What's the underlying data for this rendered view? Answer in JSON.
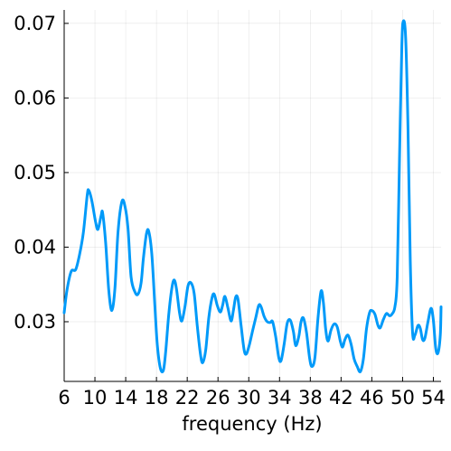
{
  "chart_data": {
    "type": "line",
    "title": "",
    "xlabel": "frequency (Hz)",
    "ylabel": "",
    "xlim": [
      6,
      55
    ],
    "ylim": [
      0.022,
      0.0718
    ],
    "grid": true,
    "legend": "none",
    "x_ticks": [
      6,
      10,
      14,
      18,
      22,
      26,
      30,
      34,
      38,
      42,
      46,
      50,
      54
    ],
    "x_tick_labels": [
      "6",
      "10",
      "14",
      "18",
      "22",
      "26",
      "30",
      "34",
      "38",
      "42",
      "46",
      "50",
      "54"
    ],
    "y_ticks": [
      0.03,
      0.04,
      0.05,
      0.06,
      0.07
    ],
    "y_tick_labels": [
      "0.03",
      "0.04",
      "0.05",
      "0.06",
      "0.07"
    ],
    "series": [
      {
        "color": "#009af9",
        "points": [
          [
            6.0,
            0.0312
          ],
          [
            6.3,
            0.0338
          ],
          [
            6.7,
            0.036
          ],
          [
            7.0,
            0.0369
          ],
          [
            7.5,
            0.037
          ],
          [
            8.0,
            0.039
          ],
          [
            8.5,
            0.042
          ],
          [
            9.0,
            0.047
          ],
          [
            9.2,
            0.0476
          ],
          [
            9.6,
            0.0462
          ],
          [
            10.1,
            0.0433
          ],
          [
            10.4,
            0.0424
          ],
          [
            10.8,
            0.0442
          ],
          [
            11.0,
            0.0446
          ],
          [
            11.4,
            0.0405
          ],
          [
            11.8,
            0.0342
          ],
          [
            12.2,
            0.0315
          ],
          [
            12.6,
            0.0345
          ],
          [
            13.0,
            0.042
          ],
          [
            13.5,
            0.0461
          ],
          [
            13.9,
            0.0455
          ],
          [
            14.3,
            0.0425
          ],
          [
            14.7,
            0.036
          ],
          [
            15.2,
            0.034
          ],
          [
            15.6,
            0.0337
          ],
          [
            16.0,
            0.0352
          ],
          [
            16.3,
            0.0385
          ],
          [
            16.7,
            0.0418
          ],
          [
            17.0,
            0.0421
          ],
          [
            17.4,
            0.039
          ],
          [
            17.8,
            0.032
          ],
          [
            18.1,
            0.027
          ],
          [
            18.5,
            0.0238
          ],
          [
            18.9,
            0.0235
          ],
          [
            19.2,
            0.026
          ],
          [
            19.6,
            0.031
          ],
          [
            20.0,
            0.0345
          ],
          [
            20.3,
            0.0356
          ],
          [
            20.6,
            0.0344
          ],
          [
            21.0,
            0.0312
          ],
          [
            21.3,
            0.0301
          ],
          [
            21.7,
            0.032
          ],
          [
            22.1,
            0.0348
          ],
          [
            22.5,
            0.0352
          ],
          [
            22.9,
            0.0338
          ],
          [
            23.3,
            0.0295
          ],
          [
            23.7,
            0.0258
          ],
          [
            24.0,
            0.0245
          ],
          [
            24.4,
            0.0262
          ],
          [
            24.8,
            0.0305
          ],
          [
            25.2,
            0.0331
          ],
          [
            25.5,
            0.0337
          ],
          [
            25.9,
            0.0322
          ],
          [
            26.3,
            0.0313
          ],
          [
            26.6,
            0.0322
          ],
          [
            26.9,
            0.0334
          ],
          [
            27.3,
            0.0318
          ],
          [
            27.7,
            0.0301
          ],
          [
            28.0,
            0.0315
          ],
          [
            28.3,
            0.0333
          ],
          [
            28.6,
            0.033
          ],
          [
            29.0,
            0.0295
          ],
          [
            29.4,
            0.0262
          ],
          [
            29.7,
            0.0257
          ],
          [
            30.1,
            0.027
          ],
          [
            30.5,
            0.0288
          ],
          [
            30.9,
            0.0305
          ],
          [
            31.3,
            0.0322
          ],
          [
            31.6,
            0.032
          ],
          [
            32.0,
            0.0307
          ],
          [
            32.4,
            0.03
          ],
          [
            32.8,
            0.0299
          ],
          [
            33.1,
            0.03
          ],
          [
            33.5,
            0.028
          ],
          [
            33.9,
            0.0252
          ],
          [
            34.2,
            0.0248
          ],
          [
            34.6,
            0.027
          ],
          [
            35.0,
            0.0298
          ],
          [
            35.4,
            0.0302
          ],
          [
            35.8,
            0.0287
          ],
          [
            36.1,
            0.0268
          ],
          [
            36.5,
            0.028
          ],
          [
            36.8,
            0.03
          ],
          [
            37.1,
            0.0305
          ],
          [
            37.5,
            0.0286
          ],
          [
            37.9,
            0.0252
          ],
          [
            38.2,
            0.024
          ],
          [
            38.6,
            0.0252
          ],
          [
            39.0,
            0.0305
          ],
          [
            39.4,
            0.0341
          ],
          [
            39.7,
            0.0326
          ],
          [
            40.0,
            0.029
          ],
          [
            40.3,
            0.0274
          ],
          [
            40.7,
            0.0289
          ],
          [
            41.1,
            0.0297
          ],
          [
            41.5,
            0.0293
          ],
          [
            41.9,
            0.0274
          ],
          [
            42.2,
            0.0266
          ],
          [
            42.5,
            0.0276
          ],
          [
            42.9,
            0.0282
          ],
          [
            43.3,
            0.027
          ],
          [
            43.7,
            0.025
          ],
          [
            44.1,
            0.024
          ],
          [
            44.5,
            0.0233
          ],
          [
            44.9,
            0.025
          ],
          [
            45.3,
            0.029
          ],
          [
            45.7,
            0.0312
          ],
          [
            46.0,
            0.0315
          ],
          [
            46.4,
            0.031
          ],
          [
            46.8,
            0.0295
          ],
          [
            47.1,
            0.0292
          ],
          [
            47.5,
            0.0303
          ],
          [
            47.9,
            0.0311
          ],
          [
            48.3,
            0.0308
          ],
          [
            48.6,
            0.031
          ],
          [
            49.0,
            0.032
          ],
          [
            49.3,
            0.036
          ],
          [
            49.6,
            0.052
          ],
          [
            49.9,
            0.067
          ],
          [
            50.1,
            0.0703
          ],
          [
            50.4,
            0.068
          ],
          [
            50.7,
            0.056
          ],
          [
            51.0,
            0.038
          ],
          [
            51.3,
            0.0285
          ],
          [
            51.6,
            0.0282
          ],
          [
            52.0,
            0.0295
          ],
          [
            52.3,
            0.0291
          ],
          [
            52.6,
            0.0276
          ],
          [
            52.9,
            0.0278
          ],
          [
            53.3,
            0.03
          ],
          [
            53.7,
            0.0318
          ],
          [
            54.0,
            0.0302
          ],
          [
            54.3,
            0.0265
          ],
          [
            54.6,
            0.0258
          ],
          [
            54.9,
            0.0282
          ],
          [
            55.0,
            0.032
          ]
        ]
      }
    ]
  }
}
